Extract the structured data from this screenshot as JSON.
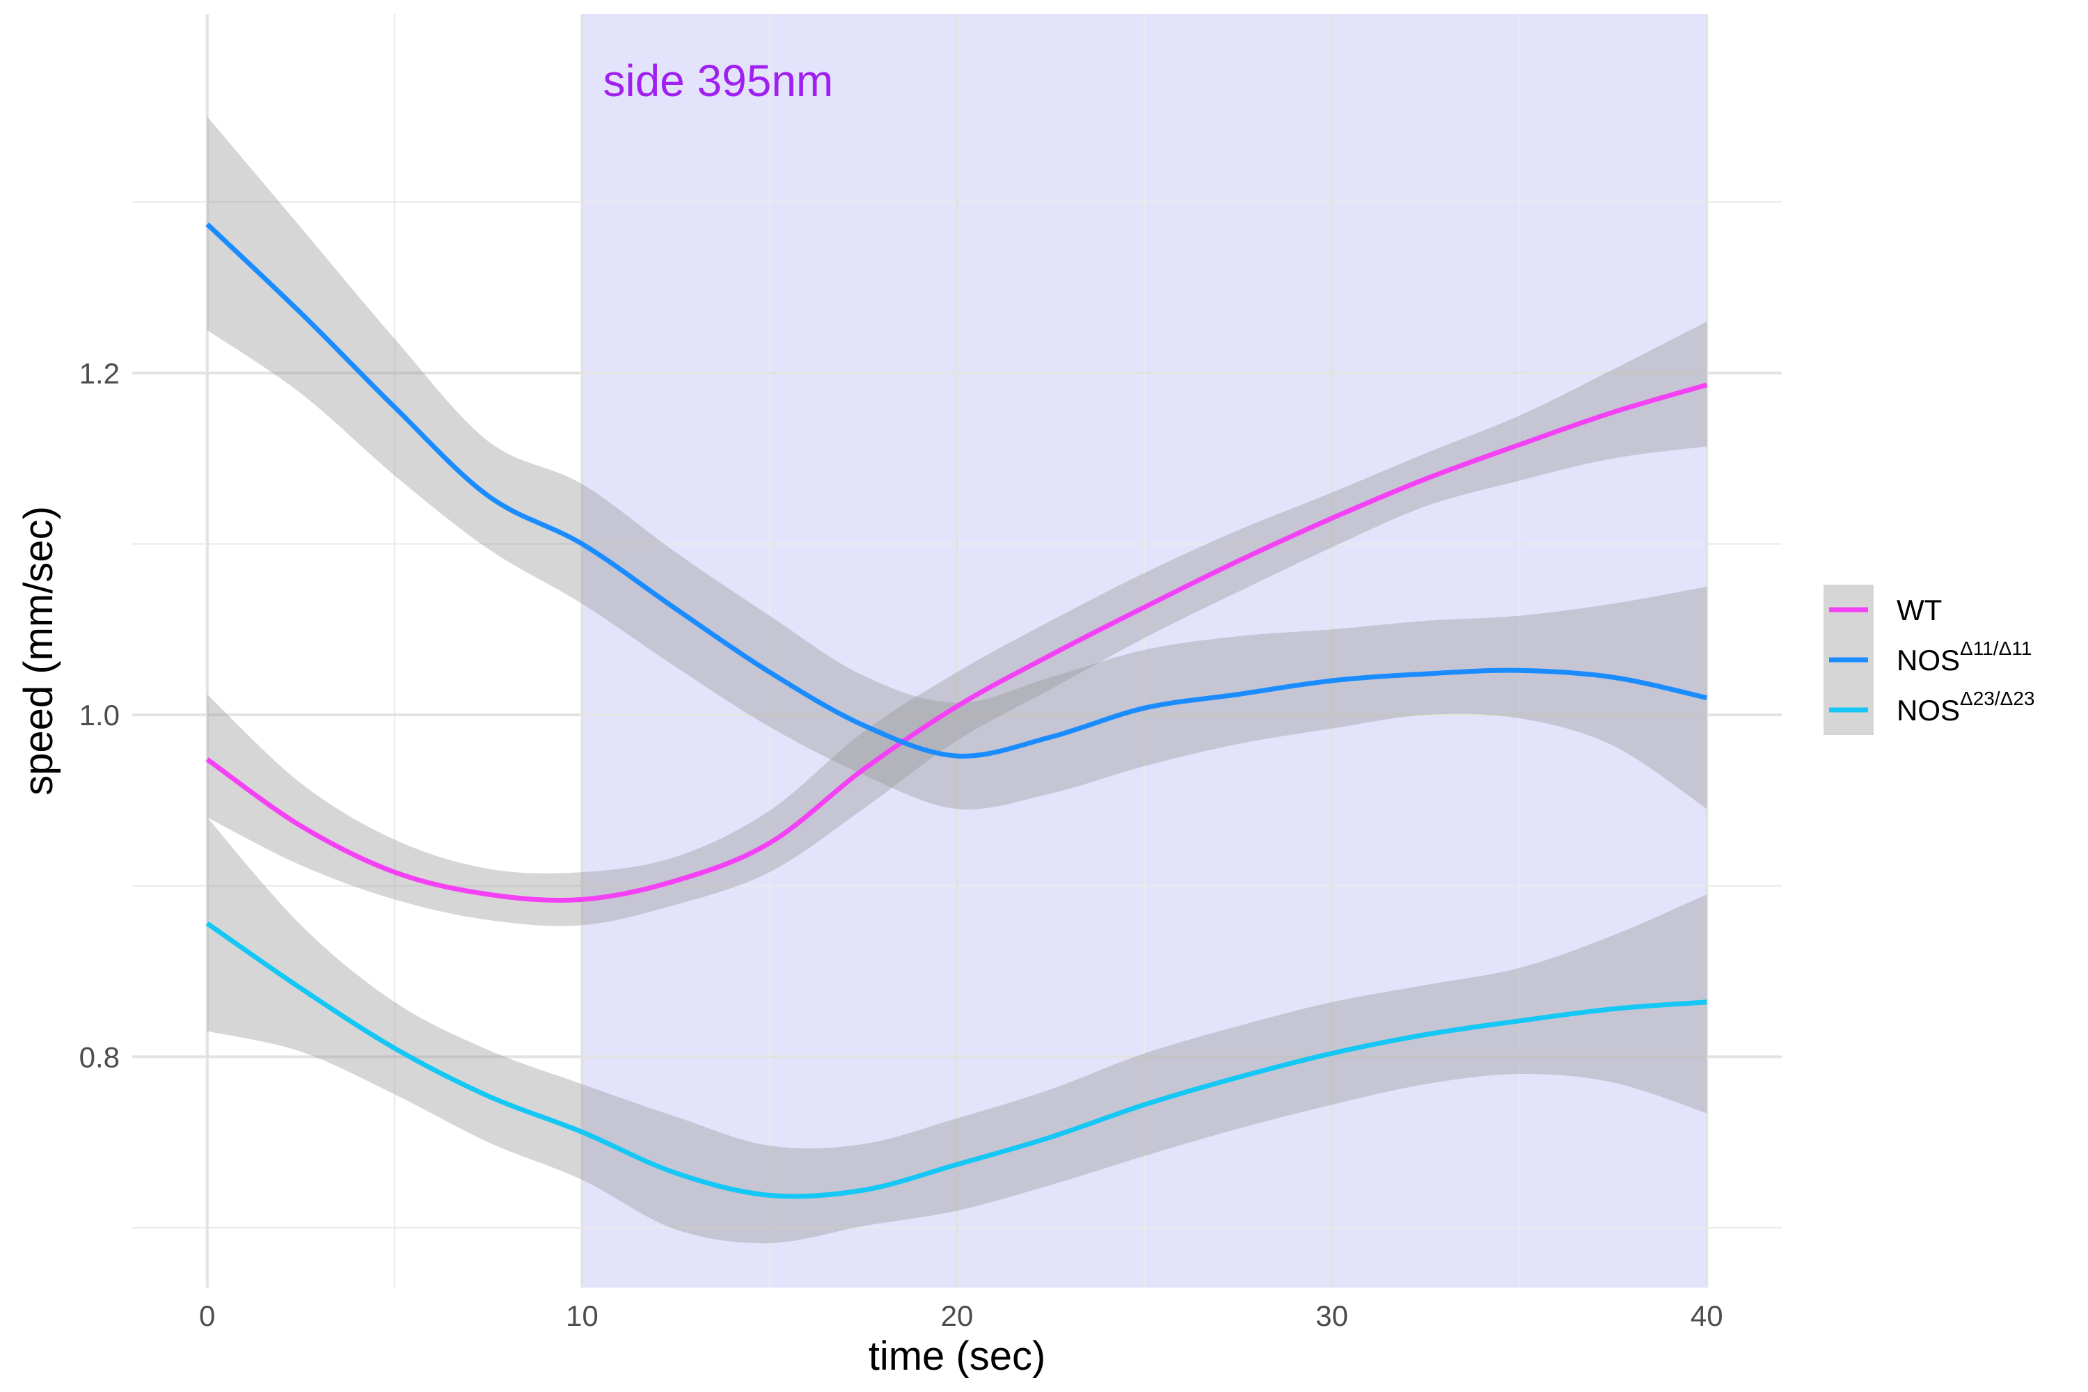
{
  "chart_data": {
    "type": "line",
    "title": "",
    "xlabel": "time (sec)",
    "ylabel": "speed (mm/sec)",
    "xlim": [
      -2,
      42
    ],
    "ylim": [
      0.665,
      1.41
    ],
    "x_ticks": [
      0,
      10,
      20,
      30,
      40
    ],
    "x_tick_labels": [
      "0",
      "10",
      "20",
      "30",
      "40"
    ],
    "x_minor_ticks": [
      5,
      15,
      25,
      35
    ],
    "y_ticks": [
      0.8,
      1.0,
      1.2
    ],
    "y_tick_labels": [
      "0.8",
      "1.0",
      "1.2"
    ],
    "y_minor_ticks": [
      0.7,
      0.9,
      1.1,
      1.3
    ],
    "grid": true,
    "legend_position": "right",
    "shaded_region": {
      "x_start": 10,
      "x_end": 40,
      "color": "#e3e3fc",
      "label": "side 395nm",
      "label_color": "#a020f0"
    },
    "ribbon_color": "#999999",
    "series": [
      {
        "name": "WT",
        "legend_base": "WT",
        "legend_sup": "",
        "color": "#f541f5",
        "x": [
          0,
          2.5,
          5,
          7.5,
          10,
          12.5,
          15,
          17.5,
          20,
          22.5,
          25,
          27.5,
          30,
          32.5,
          35,
          37.5,
          40
        ],
        "y": [
          0.974,
          0.935,
          0.908,
          0.895,
          0.892,
          0.903,
          0.925,
          0.968,
          1.005,
          1.035,
          1.063,
          1.09,
          1.115,
          1.138,
          1.158,
          1.177,
          1.193
        ],
        "lower": [
          0.94,
          0.912,
          0.892,
          0.88,
          0.877,
          0.889,
          0.908,
          0.945,
          0.985,
          1.015,
          1.045,
          1.072,
          1.098,
          1.122,
          1.137,
          1.15,
          1.157
        ],
        "upper": [
          1.012,
          0.96,
          0.927,
          0.91,
          0.908,
          0.917,
          0.944,
          0.99,
          1.025,
          1.055,
          1.083,
          1.108,
          1.13,
          1.153,
          1.175,
          1.202,
          1.23
        ]
      },
      {
        "name": "NOSΔ11/Δ11",
        "legend_base": "NOS",
        "legend_sup": "Δ11/Δ11",
        "color": "#1a8cff",
        "x": [
          0,
          2.5,
          5,
          7.5,
          10,
          12.5,
          15,
          17.5,
          20,
          22.5,
          25,
          27.5,
          30,
          32.5,
          35,
          37.5,
          40
        ],
        "y": [
          1.287,
          1.235,
          1.18,
          1.128,
          1.1,
          1.062,
          1.025,
          0.994,
          0.976,
          0.987,
          1.004,
          1.012,
          1.02,
          1.024,
          1.026,
          1.022,
          1.01
        ],
        "lower": [
          1.225,
          1.188,
          1.14,
          1.097,
          1.065,
          1.028,
          0.993,
          0.965,
          0.945,
          0.954,
          0.97,
          0.983,
          0.992,
          1.0,
          0.998,
          0.982,
          0.945
        ],
        "upper": [
          1.35,
          1.285,
          1.22,
          1.16,
          1.135,
          1.095,
          1.058,
          1.023,
          1.007,
          1.022,
          1.038,
          1.046,
          1.05,
          1.055,
          1.058,
          1.065,
          1.075
        ]
      },
      {
        "name": "NOSΔ23/Δ23",
        "legend_base": "NOS",
        "legend_sup": "Δ23/Δ23",
        "color": "#14c7f5",
        "x": [
          0,
          2.5,
          5,
          7.5,
          10,
          12.5,
          15,
          17.5,
          20,
          22.5,
          25,
          27.5,
          30,
          32.5,
          35,
          37.5,
          40
        ],
        "y": [
          0.878,
          0.84,
          0.805,
          0.777,
          0.756,
          0.732,
          0.719,
          0.722,
          0.737,
          0.753,
          0.772,
          0.788,
          0.802,
          0.813,
          0.821,
          0.828,
          0.832
        ],
        "lower": [
          0.815,
          0.803,
          0.778,
          0.75,
          0.728,
          0.699,
          0.691,
          0.701,
          0.71,
          0.725,
          0.742,
          0.758,
          0.772,
          0.784,
          0.79,
          0.785,
          0.767
        ],
        "upper": [
          0.94,
          0.877,
          0.832,
          0.804,
          0.784,
          0.765,
          0.748,
          0.749,
          0.764,
          0.781,
          0.802,
          0.818,
          0.832,
          0.842,
          0.852,
          0.871,
          0.895
        ]
      }
    ]
  }
}
